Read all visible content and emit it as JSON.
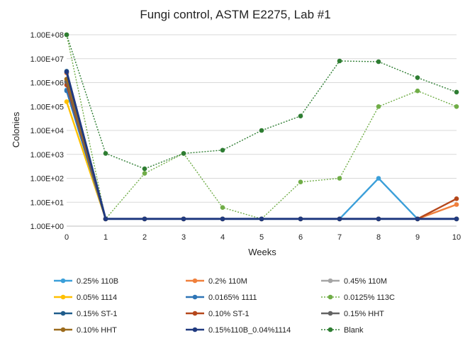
{
  "chart_data": {
    "type": "line",
    "title": "Fungi control, ASTM E2275, Lab #1",
    "xlabel": "Weeks",
    "ylabel": "Colonies",
    "y_scale": "log",
    "x_range": [
      0,
      10
    ],
    "y_range": [
      1,
      100000000
    ],
    "grid": "horizontal",
    "legend_position": "bottom",
    "x_ticks": [
      "0",
      "1",
      "2",
      "3",
      "4",
      "5",
      "6",
      "7",
      "8",
      "9",
      "10"
    ],
    "y_ticks": [
      "1.00E+00",
      "1.00E+01",
      "1.00E+02",
      "1.00E+03",
      "1.00E+04",
      "1.00E+05",
      "1.00E+06",
      "1.00E+07",
      "1.00E+08"
    ],
    "series": [
      {
        "name": "0.25% 110B",
        "color": "#3b9fd9",
        "style": "solid",
        "points": [
          [
            0,
            500000
          ],
          [
            1,
            2
          ],
          [
            2,
            2
          ],
          [
            3,
            2
          ],
          [
            4,
            2
          ],
          [
            5,
            2
          ],
          [
            6,
            2
          ],
          [
            7,
            2
          ],
          [
            8,
            100
          ],
          [
            9,
            2
          ],
          [
            10,
            2
          ]
        ]
      },
      {
        "name": "0.2% 110M",
        "color": "#f0803c",
        "style": "solid",
        "points": [
          [
            0,
            2500000
          ],
          [
            1,
            2
          ],
          [
            2,
            2
          ],
          [
            3,
            2
          ],
          [
            4,
            2
          ],
          [
            5,
            2
          ],
          [
            6,
            2
          ],
          [
            7,
            2
          ],
          [
            8,
            2
          ],
          [
            9,
            2
          ],
          [
            10,
            8
          ]
        ]
      },
      {
        "name": "0.45% 110M",
        "color": "#a5a5a5",
        "style": "solid",
        "points": [
          [
            0,
            1000000
          ],
          [
            1,
            2
          ],
          [
            2,
            2
          ],
          [
            3,
            2
          ],
          [
            4,
            2
          ],
          [
            5,
            2
          ],
          [
            6,
            2
          ],
          [
            7,
            2
          ],
          [
            8,
            2
          ],
          [
            9,
            2
          ],
          [
            10,
            2
          ]
        ]
      },
      {
        "name": "0.05% 1114",
        "color": "#ffc000",
        "style": "solid",
        "points": [
          [
            0,
            160000
          ],
          [
            1,
            2
          ],
          [
            2,
            2
          ],
          [
            3,
            2
          ],
          [
            4,
            2
          ],
          [
            5,
            2
          ],
          [
            6,
            2
          ],
          [
            7,
            2
          ],
          [
            8,
            2
          ],
          [
            9,
            2
          ],
          [
            10,
            2
          ]
        ]
      },
      {
        "name": "0.0165% 1111",
        "color": "#2e75b6",
        "style": "solid",
        "points": [
          [
            0,
            450000
          ],
          [
            1,
            2
          ],
          [
            2,
            2
          ],
          [
            3,
            2
          ],
          [
            4,
            2
          ],
          [
            5,
            2
          ],
          [
            6,
            2
          ],
          [
            7,
            2
          ],
          [
            8,
            2
          ],
          [
            9,
            2
          ],
          [
            10,
            2
          ]
        ]
      },
      {
        "name": "0.0125% 113C",
        "color": "#70ad47",
        "style": "dotted",
        "points": [
          [
            0,
            100000000
          ],
          [
            1,
            2
          ],
          [
            2,
            160
          ],
          [
            3,
            1100
          ],
          [
            4,
            6
          ],
          [
            5,
            2
          ],
          [
            6,
            70
          ],
          [
            7,
            100
          ],
          [
            8,
            100000
          ],
          [
            9,
            450000
          ],
          [
            10,
            100000
          ]
        ]
      },
      {
        "name": "0.15% ST-1",
        "color": "#1f5c8b",
        "style": "solid",
        "points": [
          [
            0,
            3000000
          ],
          [
            1,
            2
          ],
          [
            2,
            2
          ],
          [
            3,
            2
          ],
          [
            4,
            2
          ],
          [
            5,
            2
          ],
          [
            6,
            2
          ],
          [
            7,
            2
          ],
          [
            8,
            2
          ],
          [
            9,
            2
          ],
          [
            10,
            2
          ]
        ]
      },
      {
        "name": "0.10% ST-1",
        "color": "#b5471b",
        "style": "solid",
        "points": [
          [
            0,
            800000
          ],
          [
            1,
            2
          ],
          [
            2,
            2
          ],
          [
            3,
            2
          ],
          [
            4,
            2
          ],
          [
            5,
            2
          ],
          [
            6,
            2
          ],
          [
            7,
            2
          ],
          [
            8,
            2
          ],
          [
            9,
            2
          ],
          [
            10,
            14
          ]
        ]
      },
      {
        "name": "0.15% HHT",
        "color": "#636363",
        "style": "solid",
        "points": [
          [
            0,
            1100000
          ],
          [
            1,
            2
          ],
          [
            2,
            2
          ],
          [
            3,
            2
          ],
          [
            4,
            2
          ],
          [
            5,
            2
          ],
          [
            6,
            2
          ],
          [
            7,
            2
          ],
          [
            8,
            2
          ],
          [
            9,
            2
          ],
          [
            10,
            2
          ]
        ]
      },
      {
        "name": "0.10% HHT",
        "color": "#9c6b1c",
        "style": "solid",
        "points": [
          [
            0,
            1400000
          ],
          [
            1,
            2
          ],
          [
            2,
            2
          ],
          [
            3,
            2
          ],
          [
            4,
            2
          ],
          [
            5,
            2
          ],
          [
            6,
            2
          ],
          [
            7,
            2
          ],
          [
            8,
            2
          ],
          [
            9,
            2
          ],
          [
            10,
            2
          ]
        ]
      },
      {
        "name": "0.15%110B_0.04%1114",
        "color": "#203a80",
        "style": "solid",
        "points": [
          [
            0,
            2800000
          ],
          [
            1,
            2
          ],
          [
            2,
            2
          ],
          [
            3,
            2
          ],
          [
            4,
            2
          ],
          [
            5,
            2
          ],
          [
            6,
            2
          ],
          [
            7,
            2
          ],
          [
            8,
            2
          ],
          [
            9,
            2
          ],
          [
            10,
            2
          ]
        ]
      },
      {
        "name": "Blank",
        "color": "#2e7d32",
        "style": "dotted",
        "points": [
          [
            0,
            100000000
          ],
          [
            1,
            1100
          ],
          [
            2,
            250
          ],
          [
            3,
            1100
          ],
          [
            4,
            1500
          ],
          [
            5,
            10000
          ],
          [
            6,
            40000
          ],
          [
            7,
            8000000
          ],
          [
            8,
            7500000
          ],
          [
            9,
            1600000
          ],
          [
            10,
            400000
          ]
        ]
      }
    ]
  }
}
